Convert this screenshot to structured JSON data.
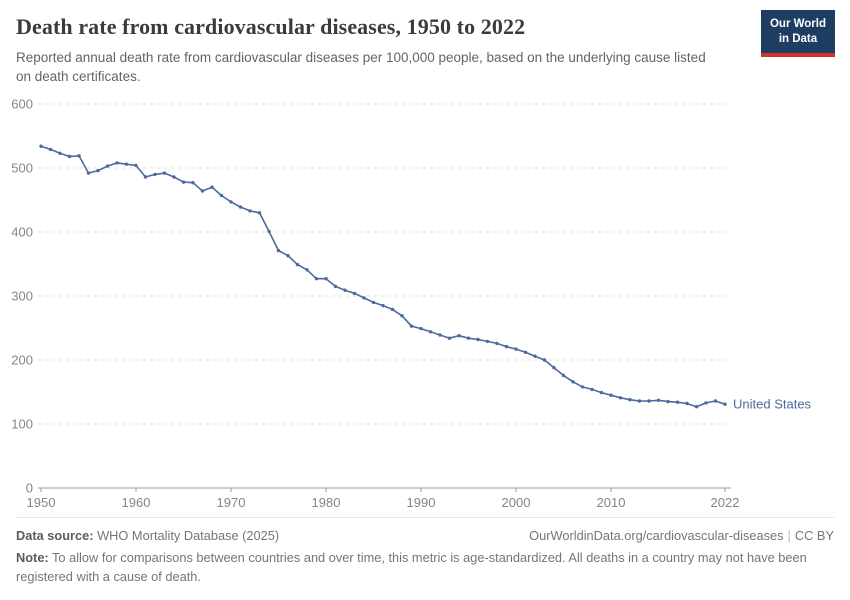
{
  "header": {
    "title": "Death rate from cardiovascular diseases, 1950 to 2022",
    "subtitle": "Reported annual death rate from cardiovascular diseases per 100,000 people, based on the underlying cause listed on death certificates.",
    "logo": {
      "line1": "Our World",
      "line2": "in Data"
    }
  },
  "chart_data": {
    "type": "line",
    "title": "Death rate from cardiovascular diseases, 1950 to 2022",
    "xlabel": "",
    "ylabel": "",
    "xlim": [
      1950,
      2022
    ],
    "ylim": [
      0,
      600
    ],
    "grid": "horizontal-dashed",
    "legend": "end-of-line-label",
    "x_ticks": [
      1950,
      1960,
      1970,
      1980,
      1990,
      2000,
      2010,
      2022
    ],
    "y_ticks": [
      0,
      100,
      200,
      300,
      400,
      500,
      600
    ],
    "series": [
      {
        "name": "United States",
        "color": "#4c6a9c",
        "x": [
          1950,
          1951,
          1952,
          1953,
          1954,
          1955,
          1956,
          1957,
          1958,
          1959,
          1960,
          1961,
          1962,
          1963,
          1964,
          1965,
          1966,
          1967,
          1968,
          1969,
          1970,
          1971,
          1972,
          1973,
          1974,
          1975,
          1976,
          1977,
          1978,
          1979,
          1980,
          1981,
          1982,
          1983,
          1984,
          1985,
          1986,
          1987,
          1988,
          1989,
          1990,
          1991,
          1992,
          1993,
          1994,
          1995,
          1996,
          1997,
          1998,
          1999,
          2000,
          2001,
          2002,
          2003,
          2004,
          2005,
          2006,
          2007,
          2008,
          2009,
          2010,
          2011,
          2012,
          2013,
          2014,
          2015,
          2016,
          2017,
          2018,
          2019,
          2020,
          2021,
          2022
        ],
        "values": [
          534,
          529,
          523,
          518,
          519,
          492,
          496,
          503,
          508,
          506,
          504,
          486,
          490,
          492,
          486,
          478,
          477,
          464,
          470,
          457,
          447,
          439,
          433,
          430,
          401,
          371,
          363,
          349,
          341,
          327,
          327,
          315,
          309,
          304,
          297,
          290,
          285,
          279,
          269,
          253,
          249,
          244,
          239,
          234,
          238,
          234,
          232,
          229,
          226,
          221,
          217,
          212,
          206,
          200,
          188,
          176,
          166,
          158,
          154,
          149,
          145,
          141,
          138,
          136,
          136,
          137,
          135,
          134,
          132,
          127,
          133,
          136,
          131
        ]
      }
    ]
  },
  "footer": {
    "datasource_label": "Data source:",
    "datasource": "WHO Mortality Database (2025)",
    "url": "OurWorldinData.org/cardiovascular-diseases",
    "separator": "|",
    "license": "CC BY",
    "note_label": "Note:",
    "note": "To allow for comparisons between countries and over time, this metric is age-standardized. All deaths in a country may not have been registered with a cause of death."
  }
}
